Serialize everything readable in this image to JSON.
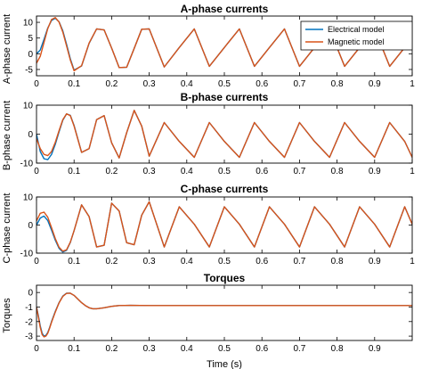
{
  "chart_data": [
    {
      "type": "line",
      "title": "A-phase currents",
      "xlabel": "",
      "ylabel": "A-phase current",
      "xlim": [
        0,
        1
      ],
      "ylim": [
        -7,
        12
      ],
      "x_ticks": [
        0,
        0.1,
        0.2,
        0.3,
        0.4,
        0.5,
        0.6,
        0.7,
        0.8,
        0.9,
        1
      ],
      "x_tick_labels": [
        "0",
        "0.1",
        "0.2",
        "0.3",
        "0.4",
        "0.5",
        "0.6",
        "0.7",
        "0.8",
        "0.9",
        "1"
      ],
      "y_ticks": [
        -5,
        0,
        5,
        10
      ],
      "y_tick_labels": [
        "-5",
        "0",
        "5",
        "10"
      ],
      "legend": {
        "placement": "top-right",
        "entries": [
          "Electrical model",
          "Magnetic model"
        ]
      },
      "grid": false,
      "series": [
        {
          "name": "Electrical model",
          "color": "#0072BD",
          "x": [
            0,
            0.01,
            0.02,
            0.03,
            0.04,
            0.05,
            0.06,
            0.07,
            0.08,
            0.09,
            0.1,
            0.12,
            0.14,
            0.16,
            0.18,
            0.2,
            0.22,
            0.24,
            0.26,
            0.28,
            0.3,
            0.34,
            0.38,
            0.42,
            0.46,
            0.5,
            0.54,
            0.58,
            0.62,
            0.66,
            0.7,
            0.74,
            0.78,
            0.82,
            0.86,
            0.9,
            0.94,
            0.98,
            1
          ],
          "y": [
            0,
            1.2,
            4.6,
            8.2,
            10.6,
            11.3,
            10.2,
            7.3,
            3.0,
            -1.6,
            -5.2,
            -3.9,
            3.3,
            7.9,
            7.6,
            1.8,
            -4.4,
            -4.3,
            1.7,
            7.8,
            7.9,
            -4.2,
            2.0,
            7.9,
            -4.0,
            2.0,
            7.9,
            -4.0,
            2.0,
            7.9,
            -4.0,
            2.0,
            7.9,
            -4.0,
            2.0,
            7.9,
            -4.0,
            2.0,
            7.9
          ]
        },
        {
          "name": "Magnetic model",
          "color": "#D95319",
          "x": [
            0,
            0.01,
            0.02,
            0.03,
            0.04,
            0.05,
            0.06,
            0.07,
            0.08,
            0.09,
            0.1,
            0.12,
            0.14,
            0.16,
            0.18,
            0.2,
            0.22,
            0.24,
            0.26,
            0.28,
            0.3,
            0.34,
            0.38,
            0.42,
            0.46,
            0.5,
            0.54,
            0.58,
            0.62,
            0.66,
            0.7,
            0.74,
            0.78,
            0.82,
            0.86,
            0.9,
            0.94,
            0.98,
            1
          ],
          "y": [
            -3.0,
            -0.8,
            3.6,
            8.0,
            10.9,
            11.5,
            10.1,
            6.9,
            2.5,
            -2.0,
            -5.4,
            -3.8,
            3.4,
            7.9,
            7.6,
            1.8,
            -4.4,
            -4.3,
            1.7,
            7.8,
            7.9,
            -4.2,
            2.0,
            7.9,
            -4.0,
            2.0,
            7.9,
            -4.0,
            2.0,
            7.9,
            -4.0,
            2.0,
            7.9,
            -4.0,
            2.0,
            7.9,
            -4.0,
            2.0,
            7.9
          ]
        }
      ]
    },
    {
      "type": "line",
      "title": "B-phase currents",
      "xlabel": "",
      "ylabel": "B-phase current",
      "xlim": [
        0,
        1
      ],
      "ylim": [
        -10,
        10
      ],
      "x_ticks": [
        0,
        0.1,
        0.2,
        0.3,
        0.4,
        0.5,
        0.6,
        0.7,
        0.8,
        0.9,
        1
      ],
      "x_tick_labels": [
        "0",
        "0.1",
        "0.2",
        "0.3",
        "0.4",
        "0.5",
        "0.6",
        "0.7",
        "0.8",
        "0.9",
        "1"
      ],
      "y_ticks": [
        -10,
        0,
        10
      ],
      "y_tick_labels": [
        "-10",
        "0",
        "10"
      ],
      "grid": false,
      "series": [
        {
          "name": "Electrical model",
          "color": "#0072BD",
          "x": [
            0,
            0.01,
            0.02,
            0.03,
            0.04,
            0.05,
            0.06,
            0.07,
            0.08,
            0.09,
            0.1,
            0.12,
            0.14,
            0.16,
            0.18,
            0.2,
            0.22,
            0.24,
            0.26,
            0.28,
            0.3,
            0.34,
            0.38,
            0.42,
            0.46,
            0.5,
            0.54,
            0.58,
            0.62,
            0.66,
            0.7,
            0.74,
            0.78,
            0.82,
            0.86,
            0.9,
            0.94,
            0.98,
            1
          ],
          "y": [
            0,
            -6.0,
            -8.5,
            -8.8,
            -7.0,
            -3.5,
            0.8,
            4.8,
            7.0,
            6.5,
            3.0,
            -6.3,
            -5.0,
            5.0,
            6.4,
            -3.0,
            -8.2,
            0.5,
            8.2,
            2.8,
            -7.6,
            4.0,
            -2.5,
            -8.0,
            4.0,
            -2.5,
            -8.0,
            4.0,
            -2.5,
            -8.0,
            4.0,
            -2.5,
            -8.0,
            4.0,
            -2.5,
            -8.0,
            4.0,
            -2.5,
            -8.0
          ]
        },
        {
          "name": "Magnetic model",
          "color": "#D95319",
          "x": [
            0,
            0.01,
            0.02,
            0.03,
            0.04,
            0.05,
            0.06,
            0.07,
            0.08,
            0.09,
            0.1,
            0.12,
            0.14,
            0.16,
            0.18,
            0.2,
            0.22,
            0.24,
            0.26,
            0.28,
            0.3,
            0.34,
            0.38,
            0.42,
            0.46,
            0.5,
            0.54,
            0.58,
            0.62,
            0.66,
            0.7,
            0.74,
            0.78,
            0.82,
            0.86,
            0.9,
            0.94,
            0.98,
            1
          ],
          "y": [
            -1.5,
            -5.0,
            -7.0,
            -7.4,
            -6.0,
            -2.8,
            1.2,
            5.0,
            7.0,
            6.4,
            2.8,
            -6.3,
            -5.0,
            5.0,
            6.4,
            -3.0,
            -8.2,
            0.5,
            8.2,
            2.8,
            -7.6,
            4.0,
            -2.5,
            -8.0,
            4.0,
            -2.5,
            -8.0,
            4.0,
            -2.5,
            -8.0,
            4.0,
            -2.5,
            -8.0,
            4.0,
            -2.5,
            -8.0,
            4.0,
            -2.5,
            -8.0
          ]
        }
      ]
    },
    {
      "type": "line",
      "title": "C-phase currents",
      "xlabel": "",
      "ylabel": "C-phase current",
      "xlim": [
        0,
        1
      ],
      "ylim": [
        -10,
        10
      ],
      "x_ticks": [
        0,
        0.1,
        0.2,
        0.3,
        0.4,
        0.5,
        0.6,
        0.7,
        0.8,
        0.9,
        1
      ],
      "x_tick_labels": [
        "0",
        "0.1",
        "0.2",
        "0.3",
        "0.4",
        "0.5",
        "0.6",
        "0.7",
        "0.8",
        "0.9",
        "1"
      ],
      "y_ticks": [
        -10,
        0,
        10
      ],
      "y_tick_labels": [
        "-10",
        "0",
        "10"
      ],
      "grid": false,
      "series": [
        {
          "name": "Electrical model",
          "color": "#0072BD",
          "x": [
            0,
            0.01,
            0.02,
            0.03,
            0.04,
            0.05,
            0.06,
            0.07,
            0.08,
            0.09,
            0.1,
            0.12,
            0.14,
            0.16,
            0.18,
            0.2,
            0.22,
            0.24,
            0.26,
            0.28,
            0.3,
            0.34,
            0.38,
            0.42,
            0.46,
            0.5,
            0.54,
            0.58,
            0.62,
            0.66,
            0.7,
            0.74,
            0.78,
            0.82,
            0.86,
            0.9,
            0.94,
            0.98,
            1
          ],
          "y": [
            0,
            2.5,
            3.2,
            1.6,
            -1.8,
            -5.4,
            -8.3,
            -9.6,
            -9.0,
            -6.2,
            -2.0,
            7.2,
            3.0,
            -7.8,
            -7.2,
            7.8,
            5.0,
            -6.3,
            -7.0,
            3.5,
            8.3,
            -7.8,
            6.5,
            0.3,
            -7.8,
            6.5,
            0.3,
            -7.8,
            6.5,
            0.3,
            -7.8,
            6.5,
            0.3,
            -7.8,
            6.5,
            0.3,
            -7.8,
            6.5,
            0.3
          ]
        },
        {
          "name": "Magnetic model",
          "color": "#D95319",
          "x": [
            0,
            0.01,
            0.02,
            0.03,
            0.04,
            0.05,
            0.06,
            0.07,
            0.08,
            0.09,
            0.1,
            0.12,
            0.14,
            0.16,
            0.18,
            0.2,
            0.22,
            0.24,
            0.26,
            0.28,
            0.3,
            0.34,
            0.38,
            0.42,
            0.46,
            0.5,
            0.54,
            0.58,
            0.62,
            0.66,
            0.7,
            0.74,
            0.78,
            0.82,
            0.86,
            0.9,
            0.94,
            0.98,
            1
          ],
          "y": [
            1.5,
            4.2,
            4.6,
            2.8,
            -0.9,
            -4.8,
            -7.9,
            -9.3,
            -8.8,
            -6.1,
            -2.0,
            7.2,
            3.0,
            -7.8,
            -7.2,
            7.8,
            5.0,
            -6.3,
            -7.0,
            3.5,
            8.3,
            -7.8,
            6.5,
            0.3,
            -7.8,
            6.5,
            0.3,
            -7.8,
            6.5,
            0.3,
            -7.8,
            6.5,
            0.3,
            -7.8,
            6.5,
            0.3,
            -7.8,
            6.5,
            0.3
          ]
        }
      ]
    },
    {
      "type": "line",
      "title": "Torques",
      "xlabel": "Time (s)",
      "ylabel": "Torques",
      "xlim": [
        0,
        1
      ],
      "ylim": [
        -3.3,
        0.5
      ],
      "x_ticks": [
        0,
        0.1,
        0.2,
        0.3,
        0.4,
        0.5,
        0.6,
        0.7,
        0.8,
        0.9
      ],
      "x_tick_labels": [
        "0",
        "0.1",
        "0.2",
        "0.3",
        "0.4",
        "0.5",
        "0.6",
        "0.7",
        "0.8",
        "0.9"
      ],
      "y_ticks": [
        -3,
        -2,
        -1,
        0
      ],
      "y_tick_labels": [
        "-3",
        "-2",
        "-1",
        "0"
      ],
      "grid": false,
      "series": [
        {
          "name": "Electrical model",
          "color": "#0072BD",
          "x": [
            0,
            0.005,
            0.01,
            0.015,
            0.02,
            0.025,
            0.03,
            0.035,
            0.04,
            0.05,
            0.06,
            0.07,
            0.08,
            0.09,
            0.1,
            0.11,
            0.12,
            0.13,
            0.14,
            0.15,
            0.16,
            0.18,
            0.2,
            0.22,
            0.25,
            0.3,
            0.35,
            0.4,
            0.5,
            0.6,
            0.7,
            0.8,
            0.9,
            1
          ],
          "y": [
            -1.0,
            -1.6,
            -2.3,
            -2.8,
            -3.0,
            -2.95,
            -2.75,
            -2.4,
            -2.0,
            -1.3,
            -0.7,
            -0.25,
            -0.05,
            -0.05,
            -0.2,
            -0.45,
            -0.7,
            -0.9,
            -1.05,
            -1.12,
            -1.12,
            -1.05,
            -0.95,
            -0.9,
            -0.88,
            -0.9,
            -0.9,
            -0.9,
            -0.9,
            -0.9,
            -0.9,
            -0.9,
            -0.9,
            -0.9
          ]
        },
        {
          "name": "Magnetic model",
          "color": "#D95319",
          "x": [
            0,
            0.005,
            0.01,
            0.015,
            0.02,
            0.025,
            0.03,
            0.035,
            0.04,
            0.05,
            0.06,
            0.07,
            0.08,
            0.09,
            0.1,
            0.11,
            0.12,
            0.13,
            0.14,
            0.15,
            0.16,
            0.18,
            0.2,
            0.22,
            0.25,
            0.3,
            0.35,
            0.4,
            0.5,
            0.6,
            0.7,
            0.8,
            0.9,
            1
          ],
          "y": [
            -1.0,
            -1.7,
            -2.4,
            -2.9,
            -3.05,
            -3.0,
            -2.8,
            -2.45,
            -2.05,
            -1.35,
            -0.72,
            -0.27,
            -0.06,
            -0.05,
            -0.2,
            -0.45,
            -0.7,
            -0.9,
            -1.05,
            -1.12,
            -1.12,
            -1.05,
            -0.95,
            -0.9,
            -0.88,
            -0.9,
            -0.9,
            -0.9,
            -0.9,
            -0.9,
            -0.9,
            -0.9,
            -0.9,
            -0.9
          ]
        }
      ]
    }
  ]
}
